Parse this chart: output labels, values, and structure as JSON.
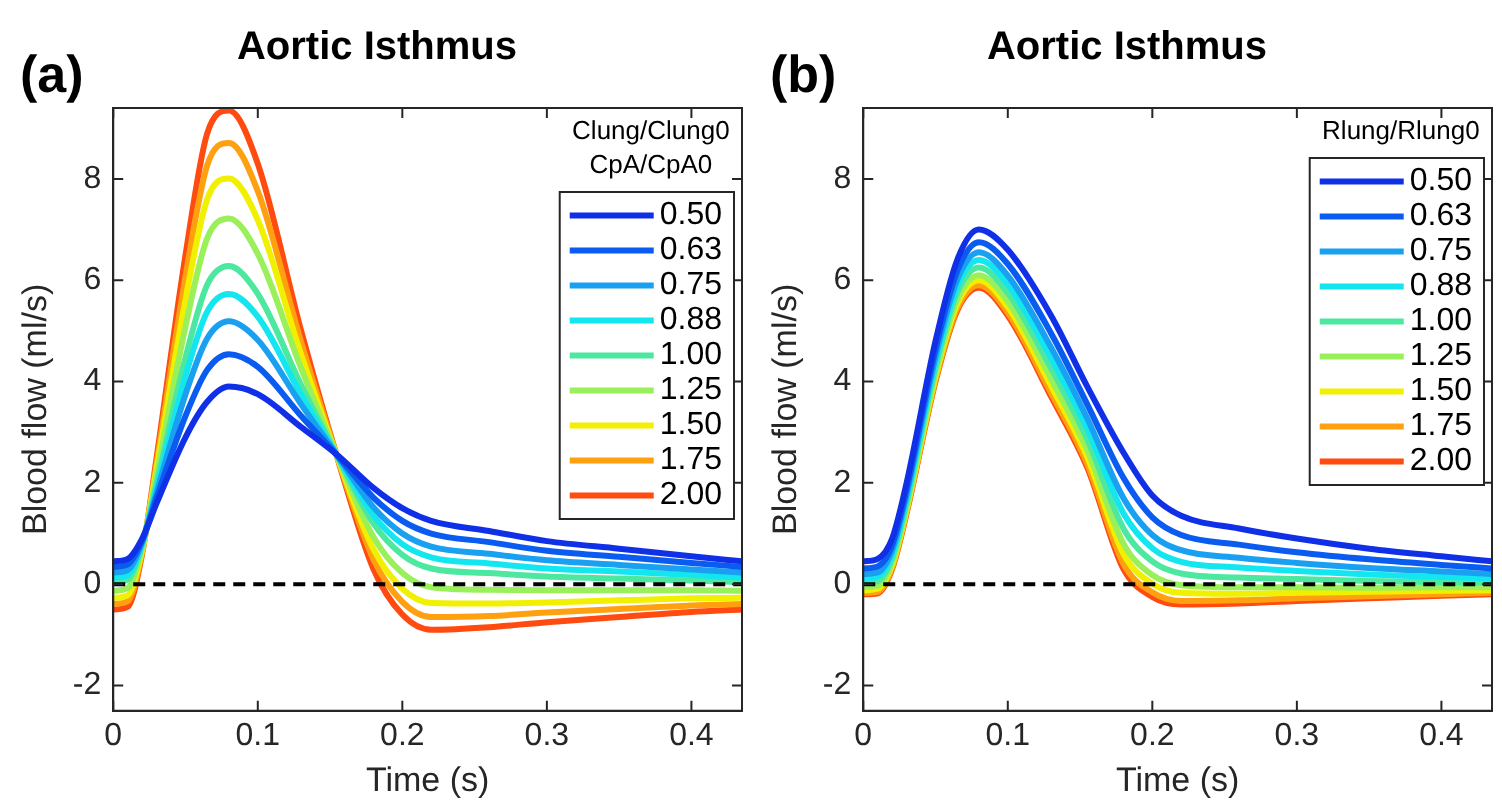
{
  "chart_data": [
    {
      "type": "line",
      "title": "Aortic Isthmus",
      "xlabel": "Time (s)",
      "ylabel": "Blood flow (ml/s)",
      "legend_title": "Clung/Clung0\nCpA/CpA0",
      "annotations": [
        "(a)"
      ],
      "x": [
        0,
        0.01,
        0.02,
        0.03,
        0.05,
        0.065,
        0.08,
        0.1,
        0.13,
        0.155,
        0.18,
        0.2,
        0.22,
        0.26,
        0.3,
        0.35,
        0.4,
        0.435
      ],
      "xlim": [
        0,
        0.435
      ],
      "xticks": [
        0,
        0.1,
        0.2,
        0.3,
        0.4
      ],
      "ylim": [
        -2.5,
        9.4
      ],
      "yticks": [
        -2,
        0,
        2,
        4,
        6,
        8
      ],
      "legend": "top right",
      "marker": "none",
      "line_style": "solid",
      "ref_lines": [
        {
          "axis": "y",
          "value": 0,
          "color": "#000000",
          "line_style": "dashed"
        }
      ],
      "series": [
        {
          "name": "0.50",
          "color": "#1030e8",
          "values": [
            0.45,
            0.5,
            0.9,
            1.6,
            2.9,
            3.6,
            3.9,
            3.75,
            3.1,
            2.55,
            1.9,
            1.5,
            1.25,
            1.05,
            0.85,
            0.7,
            0.55,
            0.45
          ]
        },
        {
          "name": "0.63",
          "color": "#0a5cf0",
          "values": [
            0.34,
            0.39,
            0.86,
            1.71,
            3.32,
            4.23,
            4.54,
            4.29,
            3.32,
            2.54,
            1.71,
            1.25,
            1.0,
            0.83,
            0.66,
            0.54,
            0.42,
            0.34
          ]
        },
        {
          "name": "0.75",
          "color": "#1aa0f0",
          "values": [
            0.23,
            0.28,
            0.83,
            1.81,
            3.75,
            4.85,
            5.19,
            4.82,
            3.55,
            2.54,
            1.52,
            1.0,
            0.74,
            0.6,
            0.47,
            0.38,
            0.29,
            0.23
          ]
        },
        {
          "name": "0.88",
          "color": "#14e6f0",
          "values": [
            0.13,
            0.18,
            0.8,
            1.9,
            4.11,
            5.38,
            5.73,
            5.28,
            3.74,
            2.53,
            1.36,
            0.79,
            0.53,
            0.41,
            0.31,
            0.25,
            0.18,
            0.13
          ]
        },
        {
          "name": "1.00",
          "color": "#4de8a0",
          "values": [
            0.04,
            0.09,
            0.77,
            1.99,
            4.47,
            5.91,
            6.28,
            5.73,
            3.93,
            2.53,
            1.2,
            0.58,
            0.31,
            0.22,
            0.15,
            0.11,
            0.07,
            0.04
          ]
        },
        {
          "name": "1.25",
          "color": "#9af05a",
          "values": [
            -0.13,
            -0.08,
            0.72,
            2.15,
            5.09,
            6.83,
            7.22,
            6.52,
            4.26,
            2.52,
            0.93,
            0.22,
            -0.06,
            -0.11,
            -0.12,
            -0.12,
            -0.12,
            -0.13
          ]
        },
        {
          "name": "1.50",
          "color": "#f0f000",
          "values": [
            -0.27,
            -0.22,
            0.67,
            2.28,
            5.62,
            7.6,
            8.01,
            7.19,
            4.53,
            2.51,
            0.69,
            -0.09,
            -0.37,
            -0.38,
            -0.36,
            -0.32,
            -0.28,
            -0.27
          ]
        },
        {
          "name": "1.75",
          "color": "#ffa010",
          "values": [
            -0.39,
            -0.34,
            0.64,
            2.39,
            6.08,
            8.27,
            8.71,
            7.76,
            4.78,
            2.51,
            0.49,
            -0.35,
            -0.65,
            -0.63,
            -0.56,
            -0.49,
            -0.42,
            -0.39
          ]
        },
        {
          "name": "2.00",
          "color": "#ff4a10",
          "values": [
            -0.5,
            -0.45,
            0.6,
            2.5,
            6.5,
            8.9,
            9.35,
            8.3,
            5.0,
            2.5,
            0.3,
            -0.6,
            -0.9,
            -0.85,
            -0.75,
            -0.65,
            -0.55,
            -0.5
          ]
        }
      ]
    },
    {
      "type": "line",
      "title": "Aortic Isthmus",
      "xlabel": "Time (s)",
      "ylabel": "Blood flow (ml/s)",
      "legend_title": "Rlung/Rlung0",
      "annotations": [
        "(b)"
      ],
      "x": [
        0,
        0.01,
        0.02,
        0.03,
        0.05,
        0.065,
        0.08,
        0.1,
        0.13,
        0.155,
        0.18,
        0.2,
        0.22,
        0.26,
        0.3,
        0.35,
        0.4,
        0.435
      ],
      "xlim": [
        0,
        0.435
      ],
      "xticks": [
        0,
        0.1,
        0.2,
        0.3,
        0.4
      ],
      "ylim": [
        -2.5,
        9.4
      ],
      "yticks": [
        -2,
        0,
        2,
        4,
        6,
        8
      ],
      "legend": "top right",
      "marker": "none",
      "line_style": "solid",
      "ref_lines": [
        {
          "axis": "y",
          "value": 0,
          "color": "#000000",
          "line_style": "dashed"
        }
      ],
      "series": [
        {
          "name": "0.50",
          "color": "#1030e8",
          "values": [
            0.45,
            0.5,
            0.9,
            2.0,
            4.8,
            6.4,
            7.0,
            6.6,
            5.3,
            3.9,
            2.6,
            1.75,
            1.35,
            1.1,
            0.9,
            0.7,
            0.55,
            0.45
          ]
        },
        {
          "name": "0.63",
          "color": "#0a5cf0",
          "values": [
            0.31,
            0.35,
            0.77,
            1.87,
            4.63,
            6.18,
            6.75,
            6.32,
            4.95,
            3.55,
            2.1,
            1.32,
            0.97,
            0.78,
            0.63,
            0.49,
            0.38,
            0.31
          ]
        },
        {
          "name": "0.75",
          "color": "#1aa0f0",
          "values": [
            0.2,
            0.23,
            0.67,
            1.77,
            4.49,
            6.01,
            6.55,
            6.09,
            4.67,
            3.27,
            1.7,
            0.97,
            0.67,
            0.52,
            0.42,
            0.32,
            0.25,
            0.2
          ]
        },
        {
          "name": "0.88",
          "color": "#14e6f0",
          "values": [
            0.11,
            0.15,
            0.59,
            1.69,
            4.38,
            5.88,
            6.4,
            5.92,
            4.46,
            3.07,
            1.4,
            0.71,
            0.44,
            0.33,
            0.26,
            0.19,
            0.14,
            0.11
          ]
        },
        {
          "name": "1.00",
          "color": "#4de8a0",
          "values": [
            0.03,
            0.06,
            0.51,
            1.61,
            4.28,
            5.75,
            6.25,
            5.75,
            4.26,
            2.86,
            1.1,
            0.45,
            0.21,
            0.13,
            0.1,
            0.06,
            0.04,
            0.03
          ]
        },
        {
          "name": "1.25",
          "color": "#9af05a",
          "values": [
            -0.06,
            -0.03,
            0.43,
            1.53,
            4.17,
            5.62,
            6.1,
            5.58,
            4.05,
            2.65,
            0.8,
            0.18,
            -0.02,
            -0.06,
            -0.06,
            -0.07,
            -0.06,
            -0.06
          ]
        },
        {
          "name": "1.50",
          "color": "#f0f000",
          "values": [
            -0.12,
            -0.09,
            0.38,
            1.48,
            4.1,
            5.53,
            6.0,
            5.47,
            3.91,
            2.51,
            0.6,
            0.01,
            -0.17,
            -0.19,
            -0.17,
            -0.15,
            -0.13,
            -0.12
          ]
        },
        {
          "name": "1.75",
          "color": "#ffa010",
          "values": [
            -0.17,
            -0.15,
            0.33,
            1.43,
            4.03,
            5.44,
            5.9,
            5.36,
            3.77,
            2.37,
            0.4,
            -0.16,
            -0.33,
            -0.32,
            -0.28,
            -0.24,
            -0.2,
            -0.17
          ]
        },
        {
          "name": "2.00",
          "color": "#ff4a10",
          "values": [
            -0.2,
            -0.18,
            0.3,
            1.4,
            4.0,
            5.4,
            5.85,
            5.3,
            3.7,
            2.3,
            0.3,
            -0.25,
            -0.4,
            -0.38,
            -0.33,
            -0.28,
            -0.23,
            -0.2
          ]
        }
      ]
    }
  ]
}
